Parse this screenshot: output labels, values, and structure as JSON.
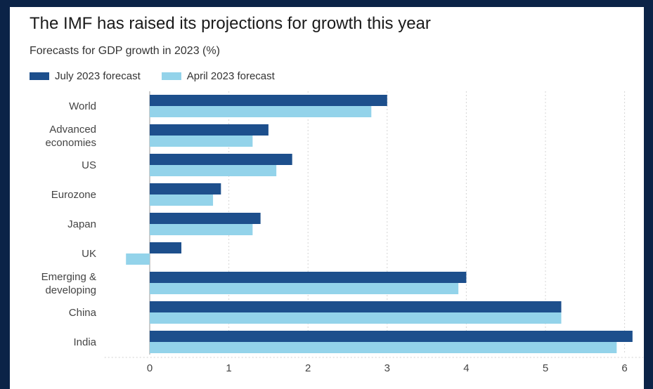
{
  "title": "The IMF has raised its projections for growth this year",
  "subtitle": "Forecasts for GDP growth in 2023 (%)",
  "colors": {
    "july": "#1d4f8c",
    "april": "#93d3ea",
    "background": "#0b2347"
  },
  "chart_data": {
    "type": "bar",
    "orientation": "horizontal",
    "categories": [
      [
        "World"
      ],
      [
        "Advanced",
        "economies"
      ],
      [
        "US"
      ],
      [
        "Eurozone"
      ],
      [
        "Japan"
      ],
      [
        "UK"
      ],
      [
        "Emerging &",
        "developing"
      ],
      [
        "China"
      ],
      [
        "India"
      ]
    ],
    "series": [
      {
        "name": "July 2023 forecast",
        "color": "#1d4f8c",
        "values": [
          3.0,
          1.5,
          1.8,
          0.9,
          1.4,
          0.4,
          4.0,
          5.2,
          6.1
        ]
      },
      {
        "name": "April 2023 forecast",
        "color": "#93d3ea",
        "values": [
          2.8,
          1.3,
          1.6,
          0.8,
          1.3,
          -0.3,
          3.9,
          5.2,
          5.9
        ]
      }
    ],
    "xlim": [
      -0.5,
      6.2
    ],
    "xticks": [
      0,
      1,
      2,
      3,
      4,
      5,
      6
    ],
    "grid": "vertical dashed",
    "legend": "top-left"
  }
}
